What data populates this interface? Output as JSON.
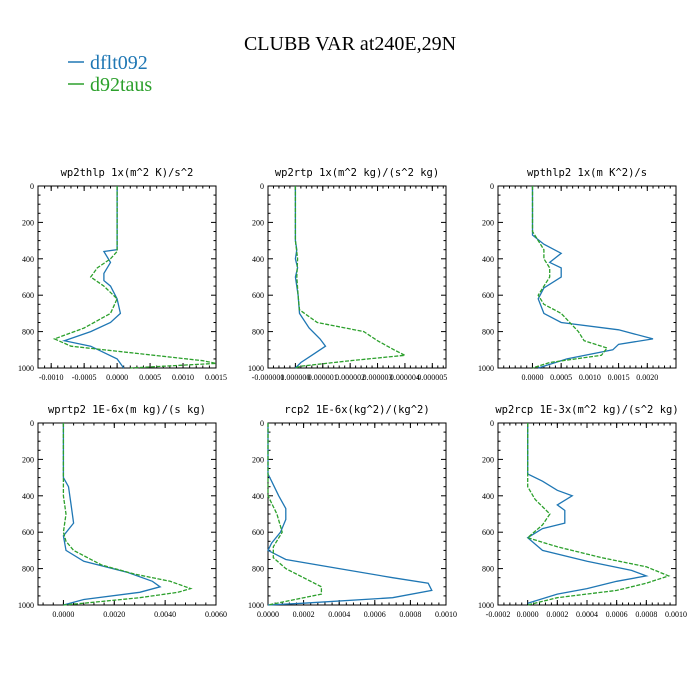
{
  "title": "CLUBB VAR at240E,29N",
  "legend": [
    {
      "label": "dflt092",
      "color": "#1f77b4",
      "dash": "solid"
    },
    {
      "label": "d92taus",
      "color": "#2ca02c",
      "dash": "dashed"
    }
  ],
  "chart_data": [
    {
      "type": "line",
      "title": "wp2thlp   1x(m^2 K)/s^2",
      "xlim": [
        -0.0012,
        0.0015
      ],
      "xticks": [
        -0.001,
        -0.0005,
        0,
        0.0005,
        0.001,
        0.0015
      ],
      "xtick_labels": [
        "-0.0010",
        "-0.0005",
        "0.0000",
        "0.0005",
        "0.0010",
        "0.0015"
      ],
      "ylim": [
        1000,
        0
      ],
      "yticks": [
        0,
        200,
        400,
        600,
        800,
        1000
      ],
      "ytick_labels": [
        "0",
        "200",
        "400",
        "600",
        "800",
        "1000"
      ],
      "series": [
        {
          "name": "dflt092",
          "points": [
            [
              0,
              0
            ],
            [
              0,
              250
            ],
            [
              0,
              350
            ],
            [
              -0.0002,
              360
            ],
            [
              -0.0001,
              420
            ],
            [
              -0.0002,
              480
            ],
            [
              -0.0002,
              520
            ],
            [
              -0.0001,
              550
            ],
            [
              0,
              620
            ],
            [
              5e-05,
              700
            ],
            [
              -0.0001,
              750
            ],
            [
              -0.0004,
              800
            ],
            [
              -0.0008,
              850
            ],
            [
              -0.0004,
              880
            ],
            [
              0,
              950
            ],
            [
              0.0001,
              1000
            ]
          ]
        },
        {
          "name": "d92taus",
          "points": [
            [
              0,
              0
            ],
            [
              0,
              360
            ],
            [
              -0.0001,
              400
            ],
            [
              -0.0003,
              450
            ],
            [
              -0.0004,
              500
            ],
            [
              -0.0002,
              550
            ],
            [
              0,
              620
            ],
            [
              -0.0001,
              700
            ],
            [
              -0.0005,
              780
            ],
            [
              -0.00095,
              840
            ],
            [
              -0.0007,
              880
            ],
            [
              0.0003,
              920
            ],
            [
              0.0013,
              960
            ],
            [
              0.0015,
              975
            ],
            [
              0.0002,
              1000
            ]
          ]
        }
      ]
    },
    {
      "type": "line",
      "title": "wp2rtp   1x(m^2 kg)/(s^2 kg)",
      "xlim": [
        -1e-06,
        5.5e-06
      ],
      "xticks": [
        -1e-06,
        0,
        1e-06,
        2e-06,
        3e-06,
        4e-06,
        5e-06
      ],
      "xtick_labels": [
        "-0.000001",
        "0.000000",
        "0.000001",
        "0.000002",
        "0.000003",
        "0.000004",
        "0.000005"
      ],
      "ylim": [
        1000,
        0
      ],
      "yticks": [
        0,
        200,
        400,
        600,
        800,
        1000
      ],
      "ytick_labels": [
        "0",
        "200",
        "400",
        "600",
        "800",
        "1000"
      ],
      "series": [
        {
          "name": "dflt092",
          "points": [
            [
              0,
              0
            ],
            [
              0,
              300
            ],
            [
              5e-08,
              350
            ],
            [
              0,
              400
            ],
            [
              8e-08,
              450
            ],
            [
              0,
              500
            ],
            [
              1e-07,
              600
            ],
            [
              1.5e-07,
              700
            ],
            [
              5e-07,
              780
            ],
            [
              9e-07,
              840
            ],
            [
              1.1e-06,
              880
            ],
            [
              6e-07,
              930
            ],
            [
              2e-07,
              970
            ],
            [
              0,
              1000
            ]
          ]
        },
        {
          "name": "d92taus",
          "points": [
            [
              0,
              0
            ],
            [
              0,
              300
            ],
            [
              8e-08,
              400
            ],
            [
              5e-08,
              500
            ],
            [
              1e-07,
              600
            ],
            [
              1.5e-07,
              680
            ],
            [
              8e-07,
              750
            ],
            [
              2.5e-06,
              800
            ],
            [
              3e-06,
              850
            ],
            [
              3.6e-06,
              900
            ],
            [
              4e-06,
              930
            ],
            [
              2e-06,
              960
            ],
            [
              2e-07,
              990
            ],
            [
              0,
              1000
            ]
          ]
        }
      ]
    },
    {
      "type": "line",
      "title": "wpthlp2   1x(m K^2)/s",
      "xlim": [
        -0.0006,
        0.0025
      ],
      "xticks": [
        0,
        0.0005,
        0.001,
        0.0015,
        0.002
      ],
      "xtick_labels": [
        "0.0000",
        "0.0005",
        "0.0010",
        "0.0015",
        "0.0020"
      ],
      "ylim": [
        1000,
        0
      ],
      "yticks": [
        0,
        200,
        400,
        600,
        800,
        1000
      ],
      "ytick_labels": [
        "0",
        "200",
        "400",
        "600",
        "800",
        "1000"
      ],
      "series": [
        {
          "name": "dflt092",
          "points": [
            [
              0,
              0
            ],
            [
              0,
              270
            ],
            [
              0.0002,
              320
            ],
            [
              0.0005,
              370
            ],
            [
              0.0003,
              420
            ],
            [
              0.0005,
              450
            ],
            [
              0.0005,
              500
            ],
            [
              0.0002,
              560
            ],
            [
              0.0001,
              620
            ],
            [
              0.0002,
              700
            ],
            [
              0.0005,
              750
            ],
            [
              0.0015,
              790
            ],
            [
              0.0021,
              840
            ],
            [
              0.0015,
              870
            ],
            [
              0.0014,
              900
            ],
            [
              0.0006,
              950
            ],
            [
              0.0001,
              1000
            ]
          ]
        },
        {
          "name": "d92taus",
          "points": [
            [
              0,
              0
            ],
            [
              0,
              250
            ],
            [
              0.0001,
              300
            ],
            [
              0.0002,
              350
            ],
            [
              0.0002,
              400
            ],
            [
              0.0003,
              450
            ],
            [
              0.0003,
              500
            ],
            [
              0.0001,
              600
            ],
            [
              0.0002,
              650
            ],
            [
              0.0005,
              700
            ],
            [
              0.0008,
              800
            ],
            [
              0.0009,
              850
            ],
            [
              0.0013,
              890
            ],
            [
              0.0012,
              930
            ],
            [
              0.0003,
              970
            ],
            [
              0,
              1000
            ]
          ]
        }
      ]
    },
    {
      "type": "line",
      "title": "wprtp2   1E-6x(m kg)/(s kg)",
      "xlim": [
        -0.001,
        0.006
      ],
      "xticks": [
        0,
        0.002,
        0.004,
        0.006
      ],
      "xtick_labels": [
        "0.0000",
        "0.0020",
        "0.0040",
        "0.0060"
      ],
      "ylim": [
        1000,
        0
      ],
      "yticks": [
        0,
        200,
        400,
        600,
        800,
        1000
      ],
      "ytick_labels": [
        "0",
        "200",
        "400",
        "600",
        "800",
        "1000"
      ],
      "series": [
        {
          "name": "dflt092",
          "points": [
            [
              0,
              0
            ],
            [
              0,
              300
            ],
            [
              0.0002,
              350
            ],
            [
              0.0003,
              450
            ],
            [
              0.0004,
              550
            ],
            [
              0,
              620
            ],
            [
              0.0001,
              700
            ],
            [
              0.0008,
              760
            ],
            [
              0.0025,
              820
            ],
            [
              0.0035,
              870
            ],
            [
              0.0038,
              900
            ],
            [
              0.003,
              930
            ],
            [
              0.0008,
              970
            ],
            [
              0,
              1000
            ]
          ]
        },
        {
          "name": "d92taus",
          "points": [
            [
              0,
              0
            ],
            [
              0,
              400
            ],
            [
              0.0001,
              500
            ],
            [
              0,
              600
            ],
            [
              0.0001,
              650
            ],
            [
              0.0004,
              700
            ],
            [
              0.0015,
              780
            ],
            [
              0.0028,
              830
            ],
            [
              0.0042,
              870
            ],
            [
              0.005,
              910
            ],
            [
              0.0045,
              930
            ],
            [
              0.003,
              960
            ],
            [
              0.0008,
              990
            ],
            [
              0,
              1000
            ]
          ]
        }
      ]
    },
    {
      "type": "line",
      "title": "rcp2   1E-6x(kg^2)/(kg^2)",
      "xlim": [
        0,
        0.001
      ],
      "xticks": [
        0,
        0.0002,
        0.0004,
        0.0006,
        0.0008,
        0.001
      ],
      "xtick_labels": [
        "0.0000",
        "0.0002",
        "0.0004",
        "0.0006",
        "0.0008",
        "0.0010"
      ],
      "ylim": [
        1000,
        0
      ],
      "yticks": [
        0,
        200,
        400,
        600,
        800,
        1000
      ],
      "ytick_labels": [
        "0",
        "200",
        "400",
        "600",
        "800",
        "1000"
      ],
      "series": [
        {
          "name": "dflt092",
          "points": [
            [
              0,
              0
            ],
            [
              0,
              280
            ],
            [
              2e-05,
              320
            ],
            [
              6e-05,
              400
            ],
            [
              0.0001,
              470
            ],
            [
              0.0001,
              530
            ],
            [
              7e-05,
              600
            ],
            [
              2e-05,
              660
            ],
            [
              0,
              700
            ],
            [
              0.0001,
              750
            ],
            [
              0.0004,
              800
            ],
            [
              0.0007,
              850
            ],
            [
              0.0009,
              880
            ],
            [
              0.00092,
              920
            ],
            [
              0.0007,
              960
            ],
            [
              0.0002,
              990
            ],
            [
              0,
              1000
            ]
          ]
        },
        {
          "name": "d92taus",
          "points": [
            [
              0,
              0
            ],
            [
              0,
              400
            ],
            [
              5e-05,
              500
            ],
            [
              8e-05,
              600
            ],
            [
              3e-05,
              680
            ],
            [
              3e-05,
              740
            ],
            [
              0.0001,
              800
            ],
            [
              0.0002,
              850
            ],
            [
              0.0003,
              900
            ],
            [
              0.0003,
              940
            ],
            [
              0.0001,
              980
            ],
            [
              0,
              1000
            ]
          ]
        }
      ]
    },
    {
      "type": "line",
      "title": "wp2rcp   1E-3x(m^2 kg)/(s^2 kg)",
      "xlim": [
        -0.0002,
        0.001
      ],
      "xticks": [
        -0.0002,
        0,
        0.0002,
        0.0004,
        0.0006,
        0.0008,
        0.001
      ],
      "xtick_labels": [
        "-0.0002",
        "0.0000",
        "0.0002",
        "0.0004",
        "0.0006",
        "0.0008",
        "0.0010"
      ],
      "ylim": [
        1000,
        0
      ],
      "yticks": [
        0,
        200,
        400,
        600,
        800,
        1000
      ],
      "ytick_labels": [
        "0",
        "200",
        "400",
        "600",
        "800",
        "1000"
      ],
      "series": [
        {
          "name": "dflt092",
          "points": [
            [
              0,
              0
            ],
            [
              0,
              280
            ],
            [
              0.0001,
              320
            ],
            [
              0.0002,
              370
            ],
            [
              0.0003,
              400
            ],
            [
              0.0002,
              450
            ],
            [
              0.00025,
              480
            ],
            [
              0.00025,
              550
            ],
            [
              0.0001,
              580
            ],
            [
              0,
              630
            ],
            [
              0.0001,
              700
            ],
            [
              0.0004,
              760
            ],
            [
              0.0007,
              810
            ],
            [
              0.0008,
              840
            ],
            [
              0.0006,
              870
            ],
            [
              0.0004,
              910
            ],
            [
              0.0002,
              940
            ],
            [
              0,
              990
            ]
          ]
        },
        {
          "name": "d92taus",
          "points": [
            [
              0,
              0
            ],
            [
              0,
              350
            ],
            [
              5e-05,
              420
            ],
            [
              0.00015,
              500
            ],
            [
              0.0001,
              560
            ],
            [
              0,
              630
            ],
            [
              0.0002,
              680
            ],
            [
              0.0005,
              740
            ],
            [
              0.0008,
              790
            ],
            [
              0.00095,
              840
            ],
            [
              0.0008,
              880
            ],
            [
              0.0006,
              920
            ],
            [
              0.0002,
              960
            ],
            [
              0,
              1000
            ]
          ]
        }
      ]
    }
  ]
}
